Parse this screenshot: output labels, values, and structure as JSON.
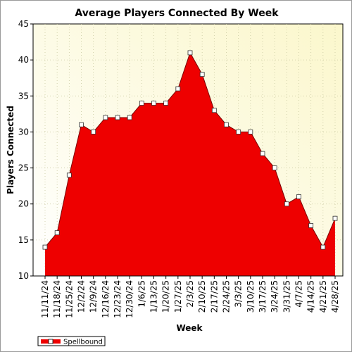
{
  "chart_data": {
    "type": "area",
    "title": "Average Players Connected By Week",
    "xlabel": "Week",
    "ylabel": "Players Connected",
    "ylim": [
      10,
      45
    ],
    "yticks": [
      10,
      15,
      20,
      25,
      30,
      35,
      40,
      45
    ],
    "grid": true,
    "legend_position": "bottom-left",
    "categories": [
      "11/11/24",
      "11/18/24",
      "11/25/24",
      "12/2/24",
      "12/9/24",
      "12/16/24",
      "12/23/24",
      "12/30/24",
      "1/6/25",
      "1/13/25",
      "1/20/25",
      "1/27/25",
      "2/3/25",
      "2/10/25",
      "2/17/25",
      "2/24/25",
      "3/3/25",
      "3/10/25",
      "3/17/25",
      "3/24/25",
      "3/31/25",
      "4/7/25",
      "4/14/25",
      "4/21/25",
      "4/28/25"
    ],
    "series": [
      {
        "name": "Spellbound",
        "color": "#ee0000",
        "values": [
          14,
          16,
          24,
          31,
          30,
          32,
          32,
          32,
          34,
          34,
          34,
          36,
          41,
          38,
          33,
          31,
          30,
          30,
          27,
          25,
          20,
          21,
          17,
          14,
          18
        ]
      }
    ]
  }
}
